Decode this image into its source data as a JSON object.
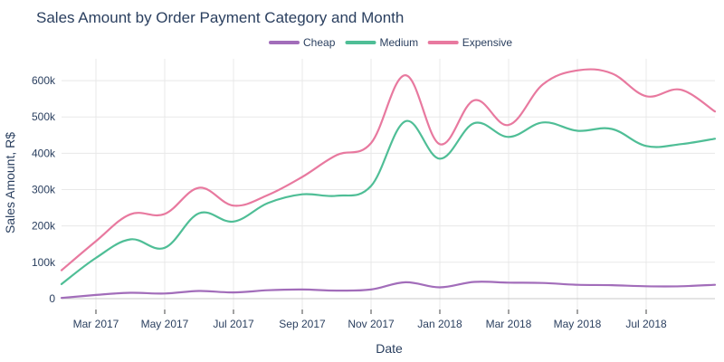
{
  "chart_data": {
    "type": "line",
    "title": "Sales Amount by Order Payment Category and Month",
    "xlabel": "Date",
    "ylabel": "Sales Amount, R$",
    "ylim": [
      -30000,
      660000
    ],
    "xlim": [
      "2017-01",
      "2018-08"
    ],
    "grid": true,
    "legend_position": "top-center",
    "x": [
      "2017-01",
      "2017-02",
      "2017-03",
      "2017-04",
      "2017-05",
      "2017-06",
      "2017-07",
      "2017-08",
      "2017-09",
      "2017-10",
      "2017-11",
      "2017-12",
      "2018-01",
      "2018-02",
      "2018-03",
      "2018-04",
      "2018-05",
      "2018-06",
      "2018-07",
      "2018-08"
    ],
    "x_ticks": [
      {
        "at": "2017-02",
        "label": "Mar 2017"
      },
      {
        "at": "2017-04",
        "label": "May 2017"
      },
      {
        "at": "2017-06",
        "label": "Jul 2017"
      },
      {
        "at": "2017-08",
        "label": "Sep 2017"
      },
      {
        "at": "2017-10",
        "label": "Nov 2017"
      },
      {
        "at": "2017-12",
        "label": "Jan 2018"
      },
      {
        "at": "2018-02",
        "label": "Mar 2018"
      },
      {
        "at": "2018-04",
        "label": "May 2018"
      },
      {
        "at": "2018-06",
        "label": "Jul 2018"
      }
    ],
    "y_ticks": [
      {
        "value": 0,
        "label": "0"
      },
      {
        "value": 100000,
        "label": "100k"
      },
      {
        "value": 200000,
        "label": "200k"
      },
      {
        "value": 300000,
        "label": "300k"
      },
      {
        "value": 400000,
        "label": "400k"
      },
      {
        "value": 500000,
        "label": "500k"
      },
      {
        "value": 600000,
        "label": "600k"
      }
    ],
    "series": [
      {
        "name": "Cheap",
        "color": "#a26dba",
        "values": [
          2000,
          10000,
          16000,
          14000,
          21000,
          17000,
          23000,
          25000,
          22000,
          25000,
          45000,
          31000,
          46000,
          44000,
          43000,
          38000,
          37000,
          34000,
          34000,
          38000
        ]
      },
      {
        "name": "Medium",
        "color": "#4fbe96",
        "values": [
          40000,
          112000,
          163000,
          140000,
          235000,
          212000,
          263000,
          287000,
          283000,
          310000,
          488000,
          385000,
          483000,
          445000,
          485000,
          462000,
          467000,
          420000,
          425000,
          440000
        ]
      },
      {
        "name": "Expensive",
        "color": "#e8799f",
        "values": [
          78000,
          158000,
          232000,
          233000,
          305000,
          256000,
          285000,
          335000,
          395000,
          428000,
          615000,
          425000,
          546000,
          478000,
          590000,
          628000,
          620000,
          557000,
          575000,
          515000
        ]
      }
    ]
  }
}
